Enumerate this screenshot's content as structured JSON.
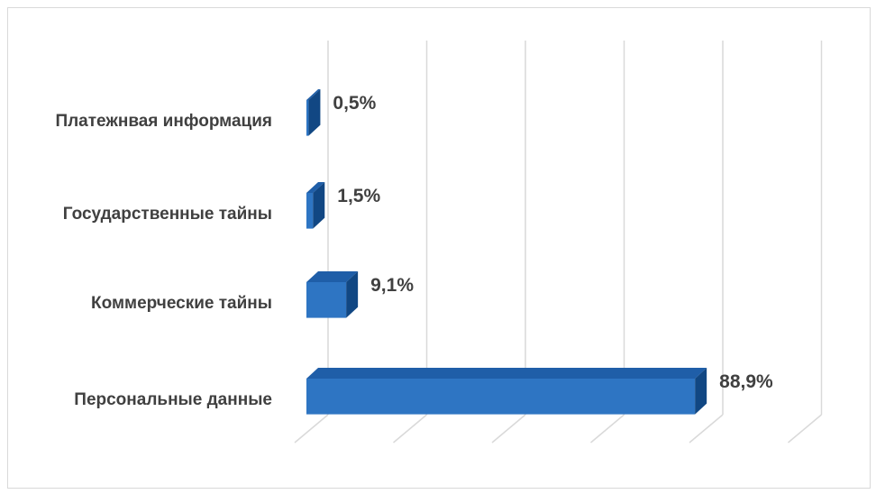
{
  "chart_data": {
    "type": "bar",
    "orientation": "horizontal",
    "style": "3d",
    "title": "",
    "xlabel": "",
    "ylabel": "",
    "categories": [
      "Платежнвая информация",
      "Государственные тайны",
      "Коммерческие тайны",
      "Персональные данные"
    ],
    "values": [
      0.5,
      1.5,
      9.1,
      88.9
    ],
    "value_labels": [
      "0,5%",
      "1,5%",
      "9,1%",
      "88,9%"
    ],
    "xlim": [
      0,
      100
    ],
    "grid": true,
    "legend": "none",
    "colors": {
      "bar_front": "#2e75c3",
      "bar_top": "#1f5ea8",
      "bar_side": "#114783",
      "grid": "#d9d9d9",
      "text": "#404040"
    }
  }
}
